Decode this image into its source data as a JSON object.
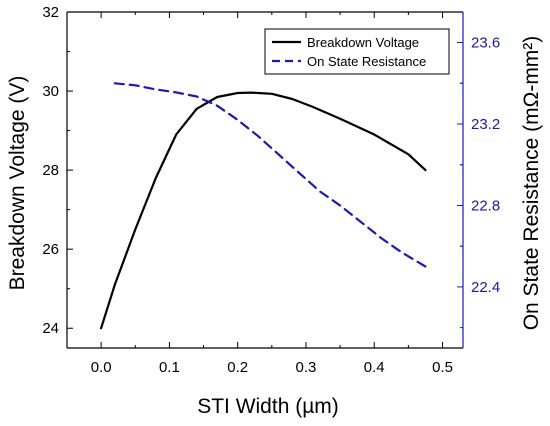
{
  "chart_data": {
    "type": "line",
    "xlabel": "STI Width (µm)",
    "ylabel_left": "Breakdown Voltage (V)",
    "ylabel_right": "On State Resistance (mΩ-mm²)",
    "xlim": [
      -0.05,
      0.53
    ],
    "ylim_left": [
      23.5,
      32
    ],
    "ylim_right": [
      22.1,
      23.75
    ],
    "x_ticks": [
      0.0,
      0.1,
      0.2,
      0.3,
      0.4,
      0.5
    ],
    "x_tick_labels": [
      "0.0",
      "0.1",
      "0.2",
      "0.3",
      "0.4",
      "0.5"
    ],
    "y_left_ticks": [
      24,
      26,
      28,
      30,
      32
    ],
    "y_left_tick_labels": [
      "24",
      "26",
      "28",
      "30",
      "32"
    ],
    "y_right_ticks": [
      22.4,
      22.8,
      23.2,
      23.6
    ],
    "y_right_tick_labels": [
      "22.4",
      "22.8",
      "23.2",
      "23.6"
    ],
    "grid": false,
    "legend_position": "top-right",
    "series": [
      {
        "name": "Breakdown Voltage",
        "axis": "left",
        "style": "solid",
        "color": "#000000",
        "x": [
          0.0,
          0.02,
          0.05,
          0.08,
          0.11,
          0.14,
          0.17,
          0.2,
          0.22,
          0.25,
          0.28,
          0.31,
          0.35,
          0.4,
          0.45,
          0.475
        ],
        "y": [
          24.0,
          25.1,
          26.5,
          27.8,
          28.9,
          29.55,
          29.85,
          29.95,
          29.96,
          29.93,
          29.8,
          29.6,
          29.3,
          28.9,
          28.4,
          28.0
        ]
      },
      {
        "name": "On State Resistance",
        "axis": "right",
        "style": "dashed",
        "color": "#1a1ab0",
        "x": [
          0.02,
          0.05,
          0.08,
          0.11,
          0.14,
          0.17,
          0.2,
          0.23,
          0.26,
          0.29,
          0.32,
          0.35,
          0.38,
          0.41,
          0.44,
          0.475
        ],
        "y": [
          23.4,
          23.39,
          23.37,
          23.355,
          23.335,
          23.29,
          23.22,
          23.14,
          23.05,
          22.96,
          22.87,
          22.8,
          22.72,
          22.64,
          22.57,
          22.5
        ]
      }
    ]
  }
}
